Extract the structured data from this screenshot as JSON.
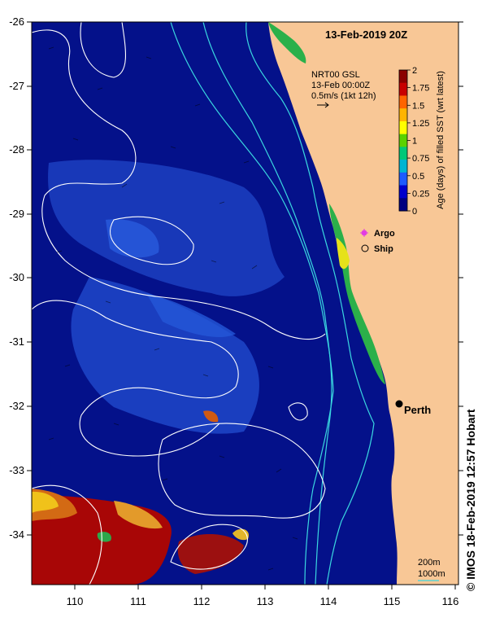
{
  "map": {
    "title": "13-Feb-2019 20Z",
    "product": {
      "line1": "NRT00 GSL",
      "line2": "13-Feb 00:00Z",
      "line3": "0.5m/s (1kt 12h)"
    },
    "longitude_ticks": [
      "110",
      "111",
      "112",
      "113",
      "114",
      "115",
      "116"
    ],
    "latitude_ticks": [
      "-26",
      "-27",
      "-28",
      "-29",
      "-30",
      "-31",
      "-32",
      "-33",
      "-34"
    ],
    "legend": {
      "argo": "Argo",
      "ship": "Ship"
    },
    "place_label": "Perth",
    "isobaths": {
      "shallow": "200m",
      "deep": "1000m"
    },
    "credit": "IMOS 18-Feb-2019 12:57 Hobart",
    "copyright_symbol": "©"
  },
  "colorbar": {
    "label": "Age (days) of filled SST (wrt latest)",
    "ticks": [
      "2",
      "1.75",
      "1.5",
      "1.25",
      "1",
      "0.75",
      "0.5",
      "0.25",
      "0"
    ],
    "colors": [
      "#000080",
      "#0000cd",
      "#1e5aff",
      "#00b4d2",
      "#00c878",
      "#5ad200",
      "#ffff00",
      "#ffb400",
      "#ff6400",
      "#c80000",
      "#8b0000"
    ]
  },
  "colors": {
    "ocean": "#04118a",
    "land": "#f8c796",
    "contour": "#ffffff",
    "isobath": "#3ad7e0",
    "argo": "#e23ce2",
    "perth_marker": "#000000"
  },
  "icons": {
    "current_arrow": "arrow-right-icon",
    "argo": "star-icon",
    "ship": "circle-icon"
  }
}
